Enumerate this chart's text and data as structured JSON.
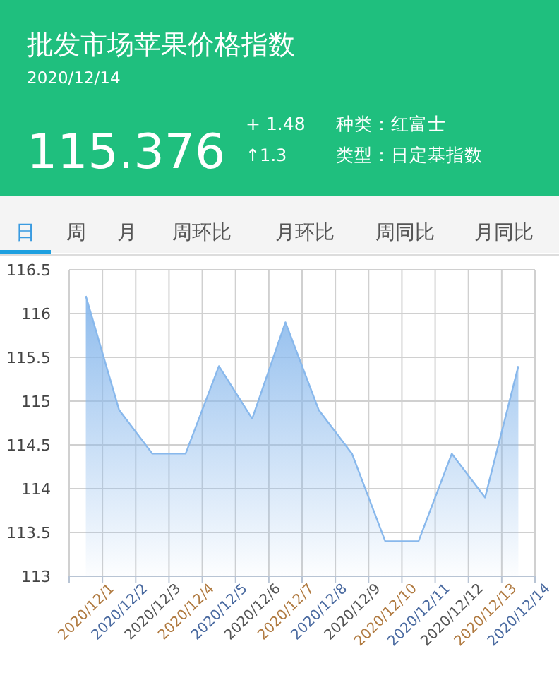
{
  "chart_data": {
    "type": "area",
    "title": "批发市场苹果价格指数",
    "subtitle": "2020/12/14",
    "annotations": [
      "115.376",
      "+ 1.48",
      "↑1.3",
      "种类：红富士",
      "类型：日定基指数",
      "日",
      "周",
      "月",
      "周环比",
      "月环比",
      "周同比",
      "月同比"
    ],
    "categories": [
      "2020/12/1",
      "2020/12/2",
      "2020/12/3",
      "2020/12/4",
      "2020/12/5",
      "2020/12/6",
      "2020/12/7",
      "2020/12/8",
      "2020/12/9",
      "2020/12/10",
      "2020/12/11",
      "2020/12/12",
      "2020/12/13",
      "2020/12/14"
    ],
    "series": [
      {
        "color": "#88b8ec",
        "values": [
          116.2,
          114.9,
          114.4,
          114.4,
          115.4,
          114.8,
          115.9,
          114.9,
          114.4,
          113.4,
          113.4,
          114.4,
          113.9,
          115.4
        ]
      }
    ],
    "ylim": [
      113,
      116.5
    ],
    "yticks": [
      113,
      113.5,
      114,
      114.5,
      115,
      115.5,
      116,
      116.5
    ],
    "grid": true
  }
}
